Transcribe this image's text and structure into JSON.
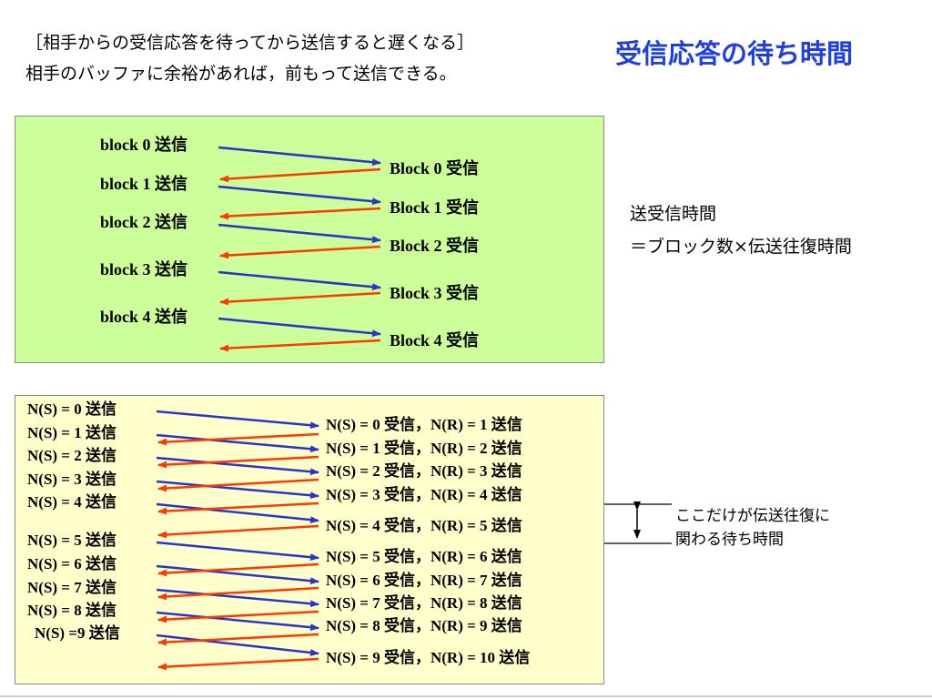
{
  "header": {
    "line1": "［相手からの受信応答を待ってから送信すると遅くなる］",
    "line2": "相手のバッファに余裕があれば，前もって送信できる。",
    "title": "受信応答の待ち時間"
  },
  "formula": {
    "line1": "送受信時間",
    "line2": "＝ブロック数×伝送往復時間"
  },
  "note": {
    "line1": "ここだけが伝送往復に",
    "line2": "関わる待ち時間"
  },
  "colors": {
    "send": "#2b34c8",
    "ack": "#ff3a00"
  },
  "diagram1": {
    "send_labels": [
      "block 0 送信",
      "block 1 送信",
      "block 2 送信",
      "block 3 送信",
      "block 4 送信"
    ],
    "recv_labels": [
      "Block 0 受信",
      "Block 1 受信",
      "Block 2 受信",
      "Block 3 受信",
      "Block 4 受信"
    ]
  },
  "diagram2": {
    "send_labels": [
      "N(S) = 0 送信",
      "N(S) = 1 送信",
      "N(S) = 2 送信",
      "N(S) = 3 送信",
      "N(S) = 4 送信",
      "N(S) = 5 送信",
      "N(S) = 6 送信",
      "N(S) = 7 送信",
      "N(S) = 8 送信",
      "N(S) =9 送信"
    ],
    "recv_labels": [
      "N(S) = 0 受信，N(R) =  1 送信",
      "N(S) = 1 受信，N(R) =  2 送信",
      "N(S) = 2 受信，N(R) =  3 送信",
      "N(S) = 3 受信，N(R) =  4 送信",
      "N(S) = 4 受信，N(R) =  5 送信",
      "N(S) = 5 受信，N(R) =  6 送信",
      "N(S) = 6 受信，N(R) =  7 送信",
      "N(S) = 7 受信，N(R) =  8 送信",
      "N(S) = 8 受信，N(R) =  9 送信",
      "N(S) = 9 受信，N(R) = 10 送信"
    ]
  }
}
